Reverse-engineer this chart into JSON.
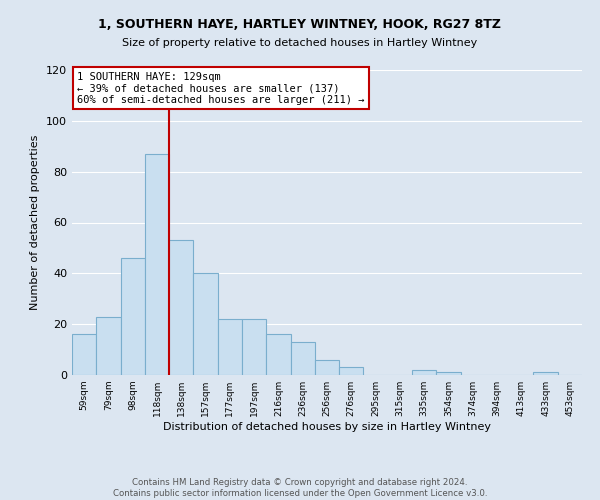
{
  "title": "1, SOUTHERN HAYE, HARTLEY WINTNEY, HOOK, RG27 8TZ",
  "subtitle": "Size of property relative to detached houses in Hartley Wintney",
  "xlabel": "Distribution of detached houses by size in Hartley Wintney",
  "ylabel": "Number of detached properties",
  "bin_labels": [
    "59sqm",
    "79sqm",
    "98sqm",
    "118sqm",
    "138sqm",
    "157sqm",
    "177sqm",
    "197sqm",
    "216sqm",
    "236sqm",
    "256sqm",
    "276sqm",
    "295sqm",
    "315sqm",
    "335sqm",
    "354sqm",
    "374sqm",
    "394sqm",
    "413sqm",
    "433sqm",
    "453sqm"
  ],
  "bar_heights": [
    16,
    23,
    46,
    87,
    53,
    40,
    22,
    22,
    16,
    13,
    6,
    3,
    0,
    0,
    2,
    1,
    0,
    0,
    0,
    1,
    0
  ],
  "bar_color": "#c9dff0",
  "bar_edge_color": "#7aaecd",
  "vline_color": "#c00000",
  "annotation_text": "1 SOUTHERN HAYE: 129sqm\n← 39% of detached houses are smaller (137)\n60% of semi-detached houses are larger (211) →",
  "annotation_box_color": "#ffffff",
  "annotation_box_edge": "#c00000",
  "ylim": [
    0,
    120
  ],
  "yticks": [
    0,
    20,
    40,
    60,
    80,
    100,
    120
  ],
  "footer_text": "Contains HM Land Registry data © Crown copyright and database right 2024.\nContains public sector information licensed under the Open Government Licence v3.0.",
  "bg_color": "#dce6f1",
  "plot_bg_color": "#dce6f1",
  "title_fontsize": 9,
  "subtitle_fontsize": 8
}
